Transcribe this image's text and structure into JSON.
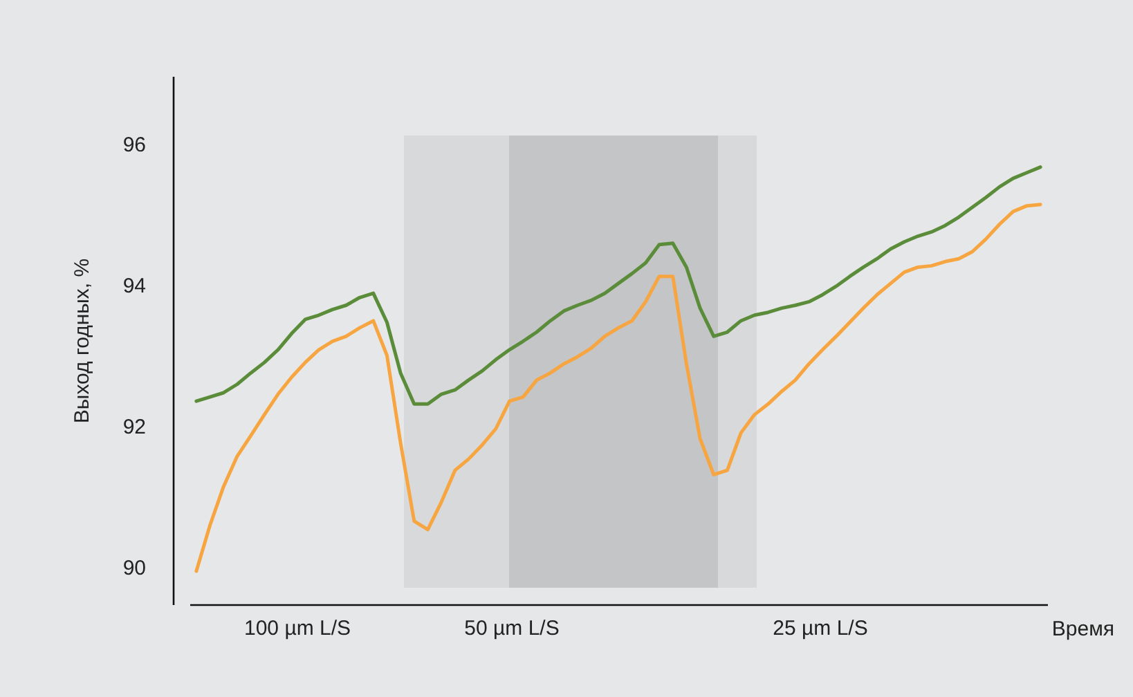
{
  "chart_data": {
    "type": "line",
    "xlabel": "Время",
    "ylabel": "Выход годных, %",
    "ylim": [
      89.47,
      96.96
    ],
    "yticks": [
      90,
      92,
      94,
      96
    ],
    "tick_labels": "y",
    "grid": false,
    "marker": "none",
    "line_style": "solid",
    "annotations": [
      "100 µm L/S",
      "50 µm L/S",
      "25 µm L/S"
    ],
    "categories": [
      null,
      null,
      null,
      null,
      null,
      null,
      null,
      null,
      null,
      null,
      null,
      null,
      null,
      null,
      null,
      null,
      null,
      null,
      null,
      null,
      null,
      null,
      null,
      null,
      null,
      null,
      null,
      null,
      null,
      null,
      null,
      null,
      null,
      null,
      null,
      null,
      null,
      null,
      null,
      null,
      null,
      null,
      null,
      null,
      null,
      null,
      null,
      null,
      null,
      null,
      null,
      null,
      null,
      null,
      null,
      null,
      null,
      null,
      null,
      null,
      null,
      null,
      null
    ],
    "series": [
      {
        "color": "#5b8c3a",
        "values": [
          92.35,
          92.41,
          92.47,
          92.59,
          92.75,
          92.9,
          93.08,
          93.31,
          93.51,
          93.57,
          93.65,
          93.71,
          93.82,
          93.88,
          93.47,
          92.75,
          92.31,
          92.31,
          92.45,
          92.51,
          92.65,
          92.78,
          92.94,
          93.08,
          93.2,
          93.33,
          93.49,
          93.63,
          93.71,
          93.78,
          93.88,
          94.02,
          94.16,
          94.31,
          94.57,
          94.59,
          94.25,
          93.67,
          93.27,
          93.33,
          93.49,
          93.57,
          93.61,
          93.67,
          93.71,
          93.76,
          93.86,
          93.98,
          94.12,
          94.25,
          94.37,
          94.51,
          94.61,
          94.69,
          94.75,
          94.84,
          94.96,
          95.1,
          95.24,
          95.39,
          95.51,
          95.59,
          95.67
        ]
      },
      {
        "color": "#f7a541",
        "values": [
          89.94,
          90.59,
          91.14,
          91.57,
          91.86,
          92.16,
          92.45,
          92.69,
          92.9,
          93.08,
          93.2,
          93.27,
          93.39,
          93.49,
          93,
          91.76,
          90.65,
          90.53,
          90.92,
          91.37,
          91.53,
          91.73,
          91.96,
          92.35,
          92.41,
          92.65,
          92.75,
          92.88,
          92.98,
          93.1,
          93.27,
          93.39,
          93.49,
          93.76,
          94.12,
          94.12,
          92.88,
          91.82,
          91.31,
          91.37,
          91.9,
          92.16,
          92.31,
          92.49,
          92.65,
          92.88,
          93.08,
          93.27,
          93.47,
          93.67,
          93.86,
          94.02,
          94.18,
          94.25,
          94.27,
          94.33,
          94.37,
          94.47,
          94.65,
          94.86,
          95.04,
          95.12,
          95.14
        ]
      }
    ]
  }
}
